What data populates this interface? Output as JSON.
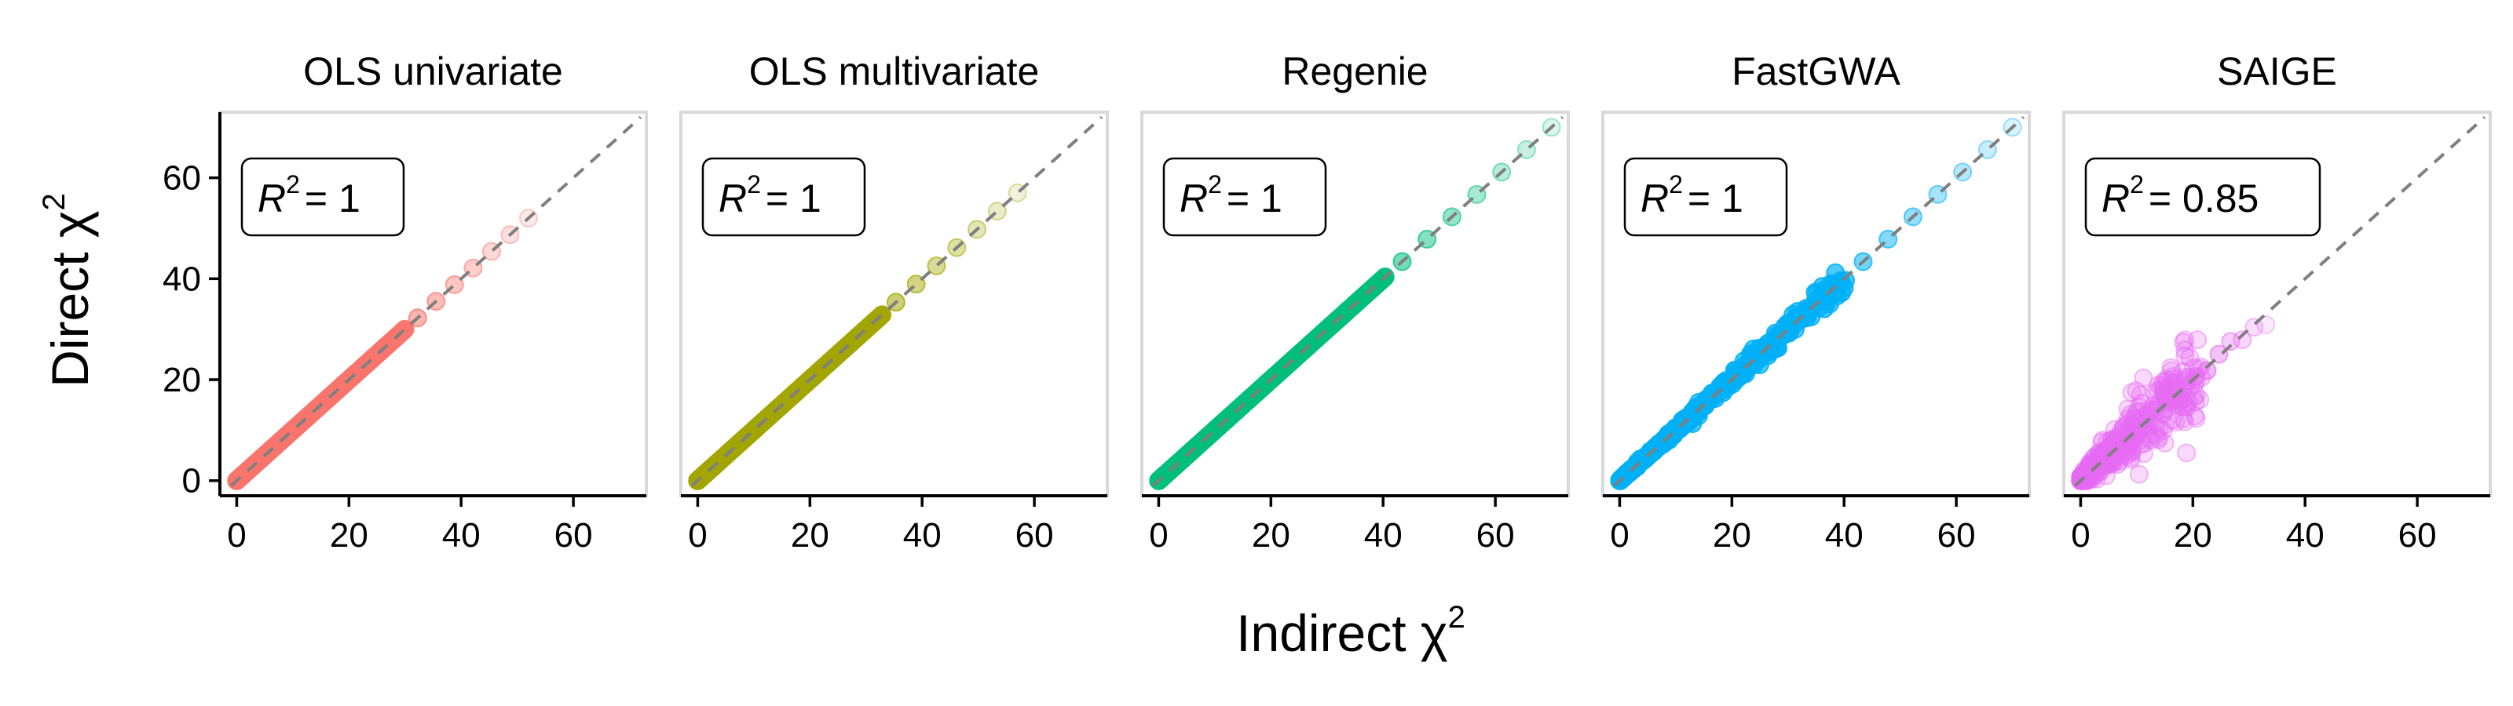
{
  "chart_data": {
    "type": "scatter",
    "xlabel": "Indirect χ",
    "xlabel_sup": "2",
    "ylabel": "Direct χ",
    "ylabel_sup": "2",
    "xlim": [
      -3,
      73
    ],
    "ylim": [
      -3,
      73
    ],
    "xticks": [
      0,
      20,
      40,
      60
    ],
    "yticks": [
      0,
      20,
      40,
      60
    ],
    "reference_line": "y = x (dashed)",
    "panels": [
      {
        "title": "OLS univariate",
        "r2_prefix": "R",
        "r2_value": "= 1",
        "color": "#F8766D",
        "max_x": 52,
        "spread": 0.0
      },
      {
        "title": "OLS multivariate",
        "r2_prefix": "R",
        "r2_value": "= 1",
        "color": "#A3A500",
        "max_x": 57,
        "spread": 0.0
      },
      {
        "title": "Regenie",
        "r2_prefix": "R",
        "r2_value": "= 1",
        "color": "#00BF7D",
        "max_x": 70,
        "spread": 0.0
      },
      {
        "title": "FastGWA",
        "r2_prefix": "R",
        "r2_value": "= 1",
        "color": "#00B0F6",
        "max_x": 70,
        "spread": 0.06
      },
      {
        "title": "SAIGE",
        "r2_prefix": "R",
        "r2_value": "= 0.85",
        "color": "#E76BF3",
        "max_x": 33,
        "spread": 0.35
      }
    ]
  }
}
